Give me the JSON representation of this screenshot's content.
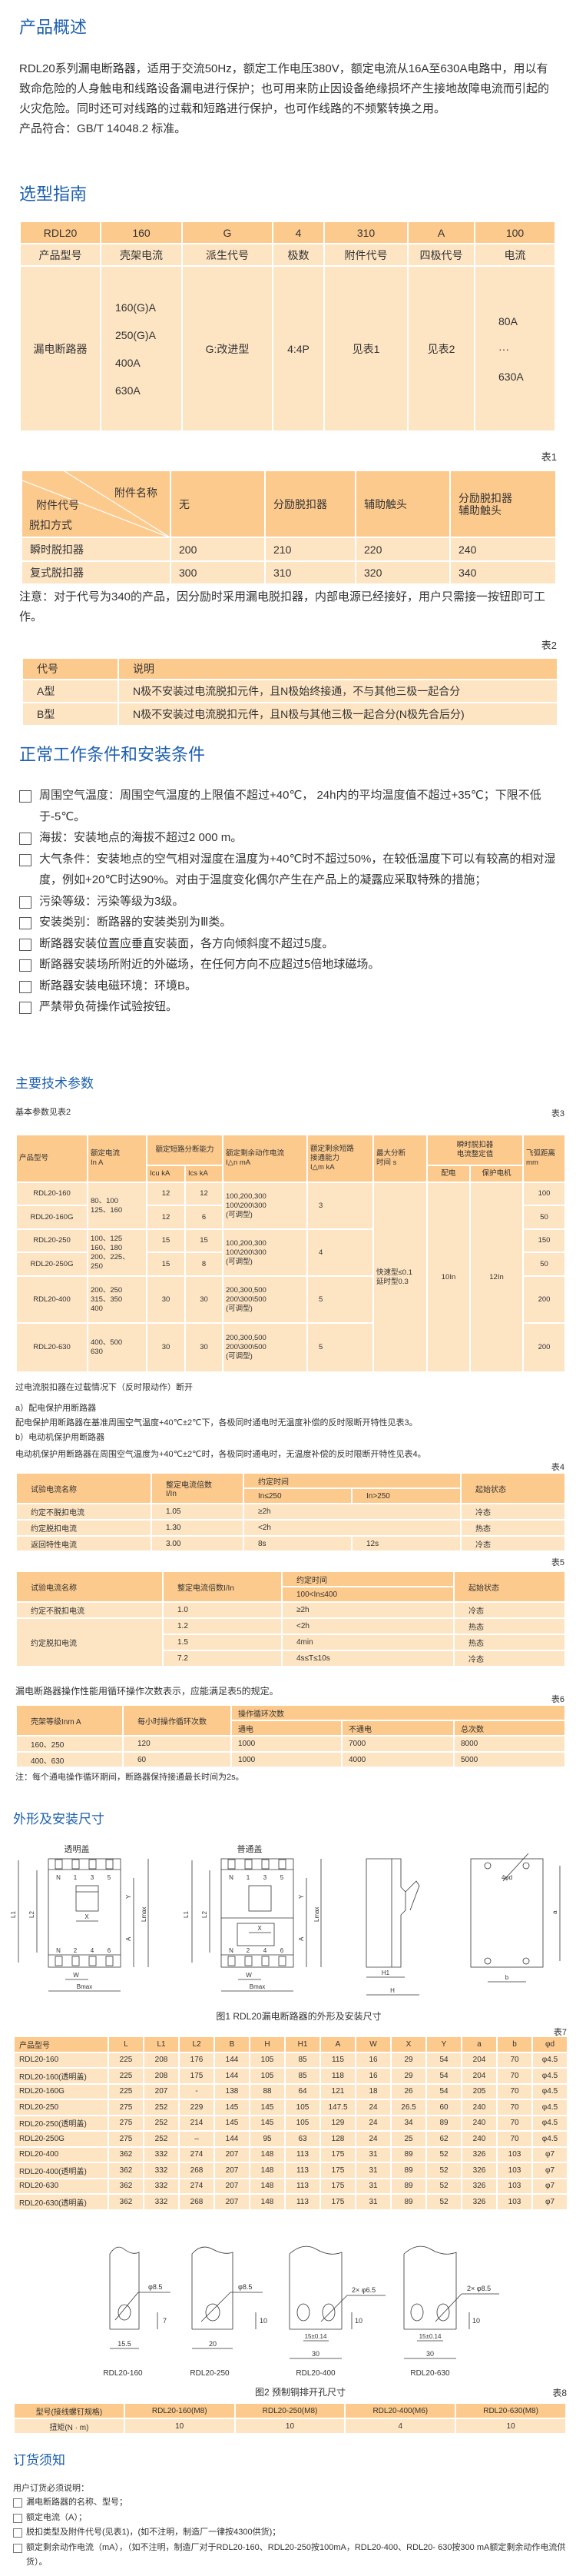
{
  "overview": {
    "title": "产品概述",
    "paragraph": "RDL20系列漏电断路器，适用于交流50Hz，额定工作电压380V，额定电流从16A至630A电路中，用以有致命危险的人身触电和线路设备漏电进行保护；也可用来防止因设备绝缘损坏产生接地故障电流而引起的火灾危险。同时还可对线路的过载和短路进行保护，也可作线路的不频繁转换之用。",
    "standard": "产品符合：GB/T 14048.2 标准。"
  },
  "selection": {
    "title": "选型指南",
    "codes": [
      "RDL20",
      "160",
      "G",
      "4",
      "310",
      "A",
      "100"
    ],
    "labels": [
      "产品型号",
      "壳架电流",
      "派生代号",
      "极数",
      "附件代号",
      "四极代号",
      "电流"
    ],
    "model": "漏电断路器",
    "frames": [
      "160(G)A",
      "250(G)A",
      "400A",
      "630A"
    ],
    "derivative": "G:改进型",
    "poles": "4:4P",
    "accessory": "见表1",
    "four_pole": "见表2",
    "currents": [
      "80A",
      "···",
      "630A"
    ]
  },
  "table1": {
    "label": "表1",
    "corner_name": "附件名称",
    "corner_code": "附件代号",
    "corner_trip": "脱扣方式",
    "headers": [
      "无",
      "分励脱扣器",
      "辅助触头",
      "分励脱扣器",
      "辅助触头"
    ],
    "rows": [
      {
        "name": "瞬时脱扣器",
        "values": [
          "200",
          "210",
          "220",
          "240"
        ]
      },
      {
        "name": "复式脱扣器",
        "values": [
          "300",
          "310",
          "320",
          "340"
        ]
      }
    ],
    "note": "注意：对于代号为340的产品，因分励时采用漏电脱扣器，内部电源已经接好，用户只需接一按钮即可工作。"
  },
  "table2": {
    "label": "表2",
    "headers": [
      "代号",
      "说明"
    ],
    "rows": [
      [
        "A型",
        "N极不安装过电流脱扣元件，且N极始终接通，不与其他三极一起合分"
      ],
      [
        "B型",
        "N极不安装过电流脱扣元件，且N极与其他三极一起合分(N极先合后分)"
      ]
    ]
  },
  "conditions": {
    "title": "正常工作条件和安装条件",
    "items": [
      "周围空气温度：周围空气温度的上限值不超过+40℃， 24h内的平均温度值不超过+35℃；下限不低于-5℃。",
      "海拔：安装地点的海拔不超过2 000 m。",
      "大气条件：安装地点的空气相对湿度在温度为+40℃时不超过50%，在较低温度下可以有较高的相对湿度，例如+20℃时达90%。对由于温度变化偶尔产生在产品上的凝露应采取特殊的措施；",
      "污染等级：污染等级为3级。",
      "安装类别：断路器的安装类别为Ⅲ类。",
      "断路器安装位置应垂直安装面，各方向倾斜度不超过5度。",
      "断路器安装场所附近的外磁场，在任何方向不应超过5倍地球磁场。",
      "断路器安装电磁环境：环境B。",
      "严禁带负荷操作试验按钮。"
    ]
  },
  "tech": {
    "title": "主要技术参数",
    "intro": "基本参数见表2",
    "label": "表3",
    "headers": {
      "model": "产品型号",
      "rated": "额定电流\nIn  A",
      "breaking": "额定短路分断能力",
      "icu": "Icu kA",
      "ics": "Ics kA",
      "residual": "额定剩余动作电流\nI△n  mA",
      "making": "额定剩余短路\n接通能力\nI△m kA",
      "max_time": "最大分断\n时间  s",
      "instant": "瞬时脱扣器\n电流整定值",
      "dist": "配电",
      "motor": "保护电机",
      "arc": "飞弧距离\nmm"
    },
    "rows": [
      {
        "model": "RDL20-160",
        "rated": "80、100\n125、160",
        "icu": "12",
        "ics": "12",
        "residual": "100,200,300\n100\\200\\300\n(可调型)",
        "making": "3",
        "arc": "100"
      },
      {
        "model": "RDL20-160G",
        "icu": "12",
        "ics": "6",
        "arc": "50"
      },
      {
        "model": "RDL20-250",
        "rated": "100、125\n160、180\n200、225、\n250",
        "icu": "15",
        "ics": "15",
        "residual": "100,200,300\n100\\200\\300\n(可调型)",
        "making": "4",
        "arc": "150"
      },
      {
        "model": "RDL20-250G",
        "icu": "15",
        "ics": "8",
        "arc": "50"
      },
      {
        "model": "RDL20-400",
        "rated": "200、250\n315、350\n400",
        "icu": "30",
        "ics": "30",
        "residual": "200,300,500\n200\\300\\500\n(可调型)",
        "making": "5",
        "arc": "200"
      },
      {
        "model": "RDL20-630",
        "rated": "400、500\n630",
        "icu": "30",
        "ics": "30",
        "residual": "200,300,500\n200\\300\\500\n(可调型)",
        "making": "5",
        "arc": "200"
      }
    ],
    "shared": {
      "max_time": "快速型≤0.1\n延时型0.3",
      "dist": "10In",
      "motor": "12In"
    }
  },
  "overload": {
    "intro": "过电流脱扣器在过载情况下（反时限动作）断开",
    "a_title": "a）配电保护用断路器",
    "a_text": "配电保护用断路器在基准周围空气温度+40℃±2℃下，各极同时通电时无温度补偿的反时限断开特性见表3。",
    "b_title": "b）电动机保护用断路器",
    "b_text": "电动机保护用断路器在周围空气温度为+40℃±2℃时，各极同时通电时，无温度补偿的反时限断开特性见表4。"
  },
  "table4": {
    "label": "表4",
    "headers": [
      "试验电流名称",
      "整定电流倍数\nI/In",
      "约定时间",
      "起始状态"
    ],
    "sub": [
      "In≤250",
      "In>250"
    ],
    "rows": [
      [
        "约定不脱扣电流",
        "1.05",
        "≥2h",
        "冷态"
      ],
      [
        "约定脱扣电流",
        "1.30",
        "<2h",
        "热态"
      ],
      [
        "返回特性电流",
        "3.00",
        "8s",
        "12s",
        "冷态"
      ]
    ]
  },
  "table5": {
    "label": "表5",
    "headers": [
      "试验电流名称",
      "整定电流倍数I/In",
      "约定时间",
      "起始状态"
    ],
    "sub": "100<In≤400",
    "rows": [
      [
        "约定不脱扣电流",
        "1.0",
        "≥2h",
        "冷态"
      ],
      [
        "约定脱扣电流",
        "1.2",
        "<2h",
        "热态"
      ],
      [
        "1.5",
        "4min",
        "热态"
      ],
      [
        "7.2",
        "4s≤T≤10s",
        "冷态"
      ]
    ]
  },
  "table6": {
    "intro": "漏电断路器操作性能用循环操作次数表示，应能满足表5的规定。",
    "label": "表6",
    "headers": [
      "壳架等级Inm  A",
      "每小时操作循环次数",
      "操作循环次数"
    ],
    "sub": [
      "通电",
      "不通电",
      "总次数"
    ],
    "rows": [
      [
        "160、250",
        "120",
        "1000",
        "7000",
        "8000"
      ],
      [
        "400、630",
        "60",
        "1000",
        "4000",
        "5000"
      ]
    ],
    "note": "注：每个通电操作循环期间，断路器保持接通最长时间为2s。"
  },
  "dimensions": {
    "title": "外形及安装尺寸",
    "fig1": {
      "views": [
        "透明盖",
        "普通盖"
      ],
      "top_terms": [
        "N",
        "1",
        "3",
        "5"
      ],
      "bottom_terms": [
        "N",
        "2",
        "4",
        "6"
      ],
      "dims": [
        "L1",
        "L2",
        "Lmax",
        "Y",
        "A",
        "X",
        "W",
        "Bmax",
        "H1",
        "H",
        "4φd",
        "a",
        "b"
      ],
      "caption": "图1 RDL20漏电断路器的外形及安装尺寸"
    }
  },
  "table7": {
    "label": "表7",
    "headers": [
      "产品型号",
      "L",
      "L1",
      "L2",
      "B",
      "H",
      "H1",
      "A",
      "W",
      "X",
      "Y",
      "a",
      "b",
      "φd"
    ],
    "rows": [
      [
        "RDL20-160",
        "225",
        "208",
        "176",
        "144",
        "105",
        "85",
        "115",
        "16",
        "29",
        "54",
        "204",
        "70",
        "φ4.5"
      ],
      [
        "RDL20-160(透明盖)",
        "225",
        "208",
        "175",
        "144",
        "105",
        "85",
        "118",
        "16",
        "29",
        "54",
        "204",
        "70",
        "φ4.5"
      ],
      [
        "RDL20-160G",
        "225",
        "207",
        "-",
        "138",
        "88",
        "64",
        "121",
        "18",
        "26",
        "54",
        "205",
        "70",
        "φ4.5"
      ],
      [
        "RDL20-250",
        "275",
        "252",
        "229",
        "145",
        "145",
        "105",
        "147.5",
        "24",
        "26.5",
        "60",
        "240",
        "70",
        "φ4.5"
      ],
      [
        "RDL20-250(透明盖)",
        "275",
        "252",
        "214",
        "145",
        "145",
        "105",
        "129",
        "24",
        "34",
        "89",
        "240",
        "70",
        "φ4.5"
      ],
      [
        "RDL20-250G",
        "275",
        "252",
        "–",
        "144",
        "95",
        "63",
        "128",
        "24",
        "25",
        "62",
        "240",
        "70",
        "φ4.5"
      ],
      [
        "RDL20-400",
        "362",
        "332",
        "274",
        "207",
        "148",
        "113",
        "175",
        "31",
        "89",
        "52",
        "326",
        "103",
        "φ7"
      ],
      [
        "RDL20-400(透明盖)",
        "362",
        "332",
        "268",
        "207",
        "148",
        "113",
        "175",
        "31",
        "89",
        "52",
        "326",
        "103",
        "φ7"
      ],
      [
        "RDL20-630",
        "362",
        "332",
        "274",
        "207",
        "148",
        "113",
        "175",
        "31",
        "89",
        "52",
        "326",
        "103",
        "φ7"
      ],
      [
        "RDL20-630(透明盖)",
        "362",
        "332",
        "268",
        "207",
        "148",
        "113",
        "175",
        "31",
        "89",
        "52",
        "326",
        "103",
        "φ7"
      ]
    ]
  },
  "fig2": {
    "bars": [
      {
        "model": "RDL20-160",
        "hole": "φ8.5",
        "height": "7",
        "width": "15.5"
      },
      {
        "model": "RDL20-250",
        "hole": "φ8.5",
        "height": "10",
        "width": "20"
      },
      {
        "model": "RDL20-400",
        "hole": "2× φ6.5",
        "height": "10",
        "pitch": "15±0.14",
        "width": "30"
      },
      {
        "model": "RDL20-630",
        "hole": "2× φ8.5",
        "height": "10",
        "pitch": "15±0.14",
        "width": "30"
      }
    ],
    "caption": "图2  预制铜排开孔尺寸"
  },
  "table8": {
    "label": "表8",
    "rows": [
      [
        "型号(接线螺钉规格)",
        "RDL20-160(M8)",
        "RDL20-250(M8)",
        "RDL20-400(M6)",
        "RDL20-630(M8)"
      ],
      [
        "扭矩(N · m)",
        "10",
        "10",
        "4",
        "10"
      ]
    ]
  },
  "order": {
    "title": "订货须知",
    "intro": "用户订货必须说明：",
    "items": [
      "漏电断路器的名称、型号；",
      "额定电流（A）；",
      "脱扣类型及附件代号(见表1)，(如不注明，制造厂一律按4300供货)；",
      "额定剩余动作电流（mA），（如不注明，制造厂对于RDL20-160、RDL20-250按100mA，RDL20-400、RDL20- 630按300 mA额定剩余动作电流供货）。"
    ]
  },
  "colors": {
    "title_blue": "#1d5fae",
    "header_orange": "#fdca8d",
    "cell_cream": "#fde4c3"
  }
}
